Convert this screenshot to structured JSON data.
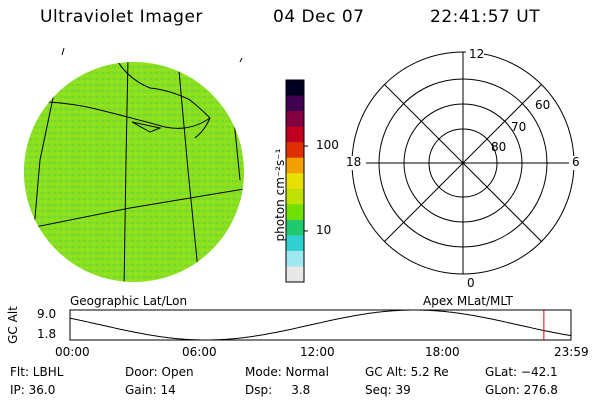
{
  "header": {
    "instrument": "Ultraviolet Imager",
    "date": "04 Dec 07",
    "time": "22:41:57 UT"
  },
  "colorbar": {
    "unit_label": "photon cm⁻²s⁻¹",
    "ticks": [
      {
        "value": 100,
        "label": "100"
      },
      {
        "value": 10,
        "label": "10"
      }
    ],
    "range": [
      2.5,
      600
    ],
    "colors": [
      "#e8e8e8",
      "#a0e8f0",
      "#30d0d0",
      "#20c870",
      "#70e000",
      "#c0e000",
      "#e8e000",
      "#f0a000",
      "#e03000",
      "#c00020",
      "#800040",
      "#400050",
      "#000020"
    ]
  },
  "left_panel": {
    "label": "Geographic Lat/Lon",
    "image_colors": {
      "main": "#8ce21d",
      "alt": "#4fcf54",
      "edge": "#a8dfe0"
    }
  },
  "polar_plot": {
    "label": "Apex MLat/MLT",
    "mlt_labels": {
      "top": "12",
      "left": "18",
      "right": "6",
      "bottom": "0"
    },
    "lat_labels": [
      "60",
      "70",
      "80"
    ]
  },
  "altitude_plot": {
    "ylabel": "GC Alt",
    "ymax_label": "9.0",
    "ymin_label": "1.8",
    "ylim": [
      1.8,
      9.0
    ],
    "x_ticks": [
      "00:00",
      "06:00",
      "12:00",
      "18:00",
      "23:59"
    ],
    "current_time_hours": 22.7,
    "current_marker_color": "#e00000"
  },
  "info": {
    "rows": [
      [
        "Flt: LBHL",
        "Door: Open",
        "Mode: Normal",
        "GC Alt: 5.2 Re",
        "GLat: −42.1"
      ],
      [
        "IP: 36.0",
        "Gain: 14",
        "Dsp:     3.8",
        "Seq: 39",
        "GLon: 276.8"
      ]
    ]
  }
}
